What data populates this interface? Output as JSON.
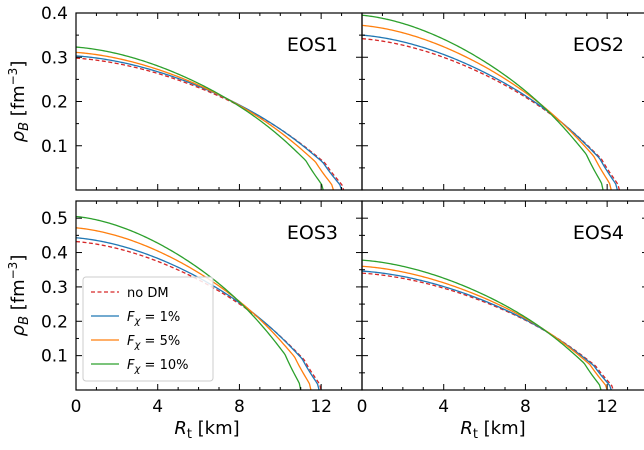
{
  "chart_data": {
    "type": "line",
    "shared_axes": {
      "xlabel": [
        "R",
        "t",
        " [km]"
      ],
      "ylabel": [
        "ρ",
        "B",
        " [fm",
        "−3",
        "]"
      ],
      "xlim": [
        0,
        14
      ],
      "xticks": [
        0,
        4,
        8,
        12
      ]
    },
    "legend": {
      "placement": "lower-left",
      "panel": "EOS3",
      "entries": [
        {
          "series": "no DM",
          "label": [
            {
              "t": "no DM"
            }
          ]
        },
        {
          "series": "1%",
          "label": [
            {
              "t": "F",
              "it": true
            },
            {
              "t": "χ",
              "it": true,
              "sub": true
            },
            {
              "t": " = 1%"
            }
          ]
        },
        {
          "series": "5%",
          "label": [
            {
              "t": "F",
              "it": true
            },
            {
              "t": "χ",
              "it": true,
              "sub": true
            },
            {
              "t": " = 5%"
            }
          ]
        },
        {
          "series": "10%",
          "label": [
            {
              "t": "F",
              "it": true
            },
            {
              "t": "χ",
              "it": true,
              "sub": true
            },
            {
              "t": " = 10%"
            }
          ]
        }
      ]
    },
    "series_styles": {
      "no DM": {
        "color": "#d62728",
        "dash": true
      },
      "1%": {
        "color": "#1f77b4",
        "dash": false
      },
      "5%": {
        "color": "#ff7f0e",
        "dash": false
      },
      "10%": {
        "color": "#2ca02c",
        "dash": false
      }
    },
    "panels": [
      {
        "label": "EOS1",
        "ylim": [
          0,
          0.4
        ],
        "yticks": [
          0.1,
          0.2,
          0.3,
          0.4
        ],
        "ytick_labels": [
          "0.1",
          "0.2",
          "0.3",
          "0.4"
        ],
        "show_yticklabels": true,
        "show_xticklabels": false,
        "show_ylabel": true,
        "show_xlabel": false,
        "series": [
          {
            "name": "no DM",
            "rho0": 0.298,
            "R": 13.1
          },
          {
            "name": "1%",
            "rho0": 0.303,
            "R": 13.0
          },
          {
            "name": "5%",
            "rho0": 0.311,
            "R": 12.6
          },
          {
            "name": "10%",
            "rho0": 0.323,
            "R": 12.1
          }
        ]
      },
      {
        "label": "EOS2",
        "ylim": [
          0,
          0.4
        ],
        "yticks": [
          0.1,
          0.2,
          0.3,
          0.4
        ],
        "ytick_labels": [
          "0.1",
          "0.2",
          "0.3",
          "0.4"
        ],
        "show_yticklabels": false,
        "show_xticklabels": false,
        "show_ylabel": false,
        "show_xlabel": false,
        "series": [
          {
            "name": "no DM",
            "rho0": 0.342,
            "R": 12.6
          },
          {
            "name": "1%",
            "rho0": 0.35,
            "R": 12.5
          },
          {
            "name": "5%",
            "rho0": 0.372,
            "R": 12.2
          },
          {
            "name": "10%",
            "rho0": 0.395,
            "R": 11.8
          }
        ]
      },
      {
        "label": "EOS3",
        "ylim": [
          0,
          0.55
        ],
        "yticks": [
          0.1,
          0.2,
          0.3,
          0.4,
          0.5
        ],
        "ytick_labels": [
          "0.1",
          "0.2",
          "0.3",
          "0.4",
          "0.5"
        ],
        "show_yticklabels": true,
        "show_xticklabels": true,
        "show_ylabel": true,
        "show_xlabel": true,
        "series": [
          {
            "name": "no DM",
            "rho0": 0.432,
            "R": 12.0
          },
          {
            "name": "1%",
            "rho0": 0.443,
            "R": 11.9
          },
          {
            "name": "5%",
            "rho0": 0.472,
            "R": 11.5
          },
          {
            "name": "10%",
            "rho0": 0.505,
            "R": 11.0
          }
        ]
      },
      {
        "label": "EOS4",
        "ylim": [
          0,
          0.55
        ],
        "yticks": [
          0.1,
          0.2,
          0.3,
          0.4,
          0.5
        ],
        "ytick_labels": [
          "0.1",
          "0.2",
          "0.3",
          "0.4",
          "0.5"
        ],
        "show_yticklabels": false,
        "show_xticklabels": true,
        "show_ylabel": false,
        "show_xlabel": true,
        "series": [
          {
            "name": "no DM",
            "rho0": 0.34,
            "R": 12.3
          },
          {
            "name": "1%",
            "rho0": 0.346,
            "R": 12.2
          },
          {
            "name": "5%",
            "rho0": 0.36,
            "R": 12.0
          },
          {
            "name": "10%",
            "rho0": 0.378,
            "R": 11.7
          }
        ]
      }
    ]
  }
}
